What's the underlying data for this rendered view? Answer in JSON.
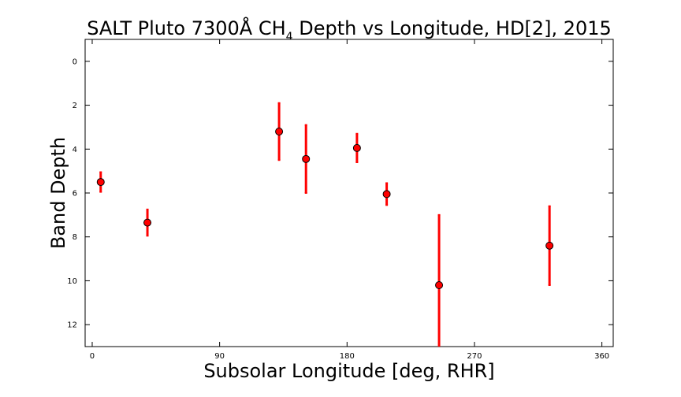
{
  "chart_data": {
    "type": "scatter",
    "title": "SALT Pluto 7300Å CH",
    "title_subscript": "4",
    "title_suffix": " Depth vs Longitude, HD[2], 2015",
    "xlabel": "Subsolar Longitude [deg, RHR]",
    "ylabel": "Band Depth",
    "xlim": [
      -5,
      368
    ],
    "ylim": [
      13,
      -1
    ],
    "y_inverted": true,
    "xticks": [
      0,
      90,
      180,
      270,
      360
    ],
    "yticks": [
      0,
      2,
      4,
      6,
      8,
      10,
      12
    ],
    "grid": false,
    "marker_color": "#ff0000",
    "errorbar_color": "#ff0000",
    "points": [
      {
        "x": 6,
        "y": 5.5,
        "yerr": 0.45
      },
      {
        "x": 39,
        "y": 7.35,
        "yerr": 0.6
      },
      {
        "x": 132,
        "y": 3.2,
        "yerr": 1.3
      },
      {
        "x": 151,
        "y": 4.45,
        "yerr": 1.55
      },
      {
        "x": 187,
        "y": 3.95,
        "yerr": 0.65
      },
      {
        "x": 208,
        "y": 6.05,
        "yerr": 0.5
      },
      {
        "x": 245,
        "y": 10.2,
        "yerr": 3.2
      },
      {
        "x": 323,
        "y": 8.4,
        "yerr": 1.8
      }
    ]
  }
}
